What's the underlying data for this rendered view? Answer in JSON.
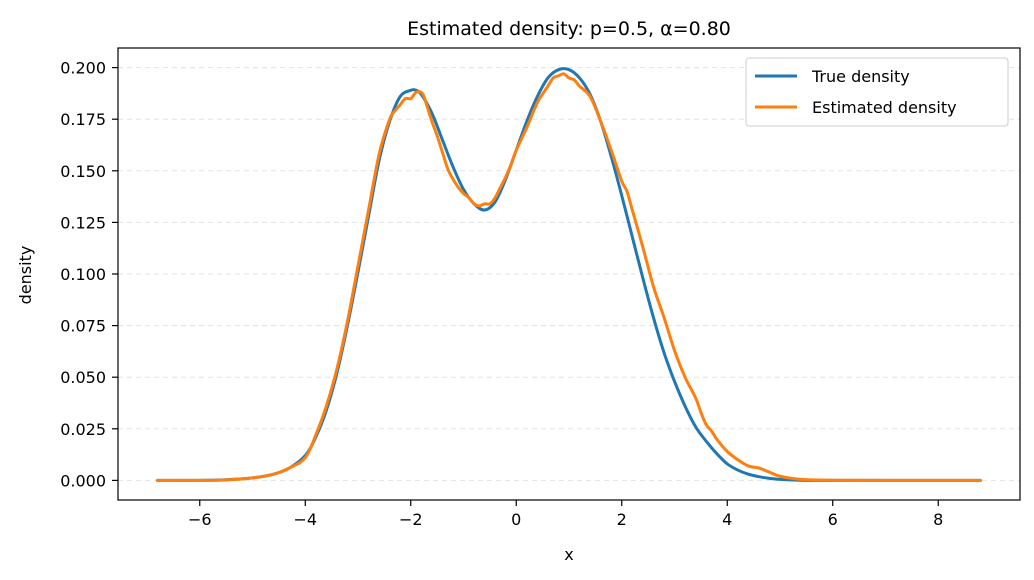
{
  "chart_data": {
    "type": "line",
    "title": "Estimated density: p=0.5, α=0.80",
    "xlabel": "x",
    "ylabel": "density",
    "xlim": [
      -7.55,
      9.55
    ],
    "ylim": [
      -0.0095,
      0.2095
    ],
    "xticks": [
      -6,
      -4,
      -2,
      0,
      2,
      4,
      6,
      8
    ],
    "xtick_labels": [
      "−6",
      "−4",
      "−2",
      "0",
      "2",
      "4",
      "6",
      "8"
    ],
    "yticks": [
      0.0,
      0.025,
      0.05,
      0.075,
      0.1,
      0.125,
      0.15,
      0.175,
      0.2
    ],
    "ytick_labels": [
      "0.000",
      "0.025",
      "0.050",
      "0.075",
      "0.100",
      "0.125",
      "0.150",
      "0.175",
      "0.200"
    ],
    "grid": "horizontal dashed",
    "legend_position": "top-right",
    "series": [
      {
        "name": "True density",
        "color": "#1f77b4",
        "x": [
          -6.8,
          -6.0,
          -5.5,
          -5.0,
          -4.6,
          -4.3,
          -4.0,
          -3.8,
          -3.6,
          -3.4,
          -3.2,
          -3.0,
          -2.8,
          -2.6,
          -2.4,
          -2.2,
          -2.0,
          -1.9,
          -1.8,
          -1.6,
          -1.4,
          -1.2,
          -1.0,
          -0.8,
          -0.6,
          -0.4,
          -0.2,
          0.0,
          0.2,
          0.4,
          0.6,
          0.8,
          1.0,
          1.2,
          1.4,
          1.6,
          1.8,
          2.0,
          2.2,
          2.4,
          2.6,
          2.8,
          3.0,
          3.2,
          3.4,
          3.6,
          3.8,
          4.0,
          4.2,
          4.4,
          4.6,
          4.8,
          5.0,
          5.4,
          6.0,
          7.0,
          8.8
        ],
        "y": [
          0.0,
          0.0,
          0.0003,
          0.0012,
          0.003,
          0.006,
          0.012,
          0.021,
          0.034,
          0.052,
          0.075,
          0.101,
          0.128,
          0.155,
          0.174,
          0.186,
          0.189,
          0.189,
          0.187,
          0.178,
          0.165,
          0.152,
          0.141,
          0.134,
          0.131,
          0.135,
          0.146,
          0.16,
          0.174,
          0.186,
          0.195,
          0.199,
          0.199,
          0.195,
          0.187,
          0.174,
          0.157,
          0.138,
          0.118,
          0.098,
          0.079,
          0.062,
          0.048,
          0.036,
          0.026,
          0.019,
          0.013,
          0.008,
          0.005,
          0.003,
          0.0018,
          0.001,
          0.0005,
          0.0001,
          0.0,
          0.0,
          0.0
        ]
      },
      {
        "name": "Estimated density",
        "color": "#ff7f0e",
        "x": [
          -6.8,
          -6.0,
          -5.5,
          -5.0,
          -4.6,
          -4.3,
          -4.0,
          -3.8,
          -3.6,
          -3.4,
          -3.2,
          -3.0,
          -2.8,
          -2.6,
          -2.4,
          -2.3,
          -2.2,
          -2.1,
          -2.0,
          -1.9,
          -1.8,
          -1.75,
          -1.7,
          -1.6,
          -1.5,
          -1.4,
          -1.3,
          -1.2,
          -1.1,
          -1.0,
          -0.9,
          -0.8,
          -0.7,
          -0.6,
          -0.5,
          -0.4,
          -0.3,
          -0.2,
          -0.1,
          0.0,
          0.2,
          0.4,
          0.6,
          0.7,
          0.8,
          0.9,
          1.0,
          1.1,
          1.2,
          1.4,
          1.6,
          1.8,
          2.0,
          2.1,
          2.2,
          2.4,
          2.6,
          2.8,
          3.0,
          3.2,
          3.4,
          3.5,
          3.6,
          3.7,
          3.8,
          4.0,
          4.2,
          4.4,
          4.6,
          4.7,
          4.8,
          5.0,
          5.4,
          6.0,
          7.0,
          8.8
        ],
        "y": [
          0.0,
          0.0,
          0.0002,
          0.0012,
          0.003,
          0.006,
          0.011,
          0.022,
          0.036,
          0.054,
          0.077,
          0.104,
          0.131,
          0.158,
          0.175,
          0.179,
          0.182,
          0.185,
          0.185,
          0.188,
          0.188,
          0.186,
          0.182,
          0.174,
          0.167,
          0.159,
          0.151,
          0.146,
          0.142,
          0.139,
          0.137,
          0.134,
          0.133,
          0.134,
          0.134,
          0.137,
          0.142,
          0.147,
          0.153,
          0.16,
          0.171,
          0.183,
          0.191,
          0.195,
          0.196,
          0.197,
          0.195,
          0.194,
          0.191,
          0.186,
          0.174,
          0.16,
          0.145,
          0.14,
          0.131,
          0.113,
          0.094,
          0.079,
          0.063,
          0.05,
          0.04,
          0.033,
          0.027,
          0.024,
          0.02,
          0.014,
          0.01,
          0.007,
          0.006,
          0.005,
          0.004,
          0.002,
          0.0005,
          0.0001,
          0.0,
          0.0
        ]
      }
    ]
  }
}
